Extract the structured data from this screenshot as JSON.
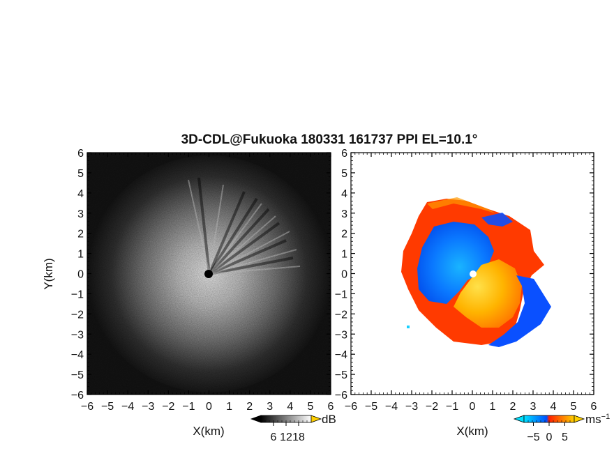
{
  "chart_data": [
    {
      "type": "heatmap",
      "title": "3D-CDL@Fukuoka 180331 161737 PPI EL=10.1°",
      "panel": "backscatter intensity",
      "xlabel": "X(km)",
      "ylabel": "Y(km)",
      "xlim": [
        -6,
        6
      ],
      "ylim": [
        -6,
        6
      ],
      "x_ticks": [
        "−6",
        "−5",
        "−4",
        "−3",
        "−2",
        "−1",
        "0",
        "1",
        "2",
        "3",
        "4",
        "5",
        "6"
      ],
      "y_ticks": [
        "6",
        "5",
        "4",
        "3",
        "2",
        "1",
        "0",
        "−1",
        "−2",
        "−3",
        "−4",
        "−5",
        "−6"
      ],
      "colorbar": {
        "unit": "dB",
        "ticks": [
          6,
          12,
          18
        ],
        "tick_labels": [
          "6",
          "12",
          "18"
        ],
        "range": [
          0,
          24
        ],
        "colors": [
          "#000000",
          "#ffffff"
        ]
      },
      "radar_center": [
        0,
        0
      ]
    },
    {
      "type": "heatmap",
      "panel": "Doppler velocity",
      "xlabel": "X(km)",
      "xlim": [
        -6,
        6
      ],
      "ylim": [
        -6,
        6
      ],
      "x_ticks": [
        "−6",
        "−5",
        "−4",
        "−3",
        "−2",
        "−1",
        "0",
        "1",
        "2",
        "3",
        "4",
        "5",
        "6"
      ],
      "y_ticks": [
        "6",
        "5",
        "4",
        "3",
        "2",
        "1",
        "0",
        "−1",
        "−2",
        "−3",
        "−4",
        "−5",
        "−6"
      ],
      "colorbar": {
        "unit": "ms",
        "unit_exp": "−1",
        "ticks": [
          -5,
          0,
          5
        ],
        "tick_labels": [
          "−5",
          "0",
          "5"
        ],
        "range": [
          -8,
          8
        ],
        "colors": [
          "#00e0ff",
          "#0050ff",
          "#ff2000",
          "#ffd000"
        ]
      }
    }
  ]
}
